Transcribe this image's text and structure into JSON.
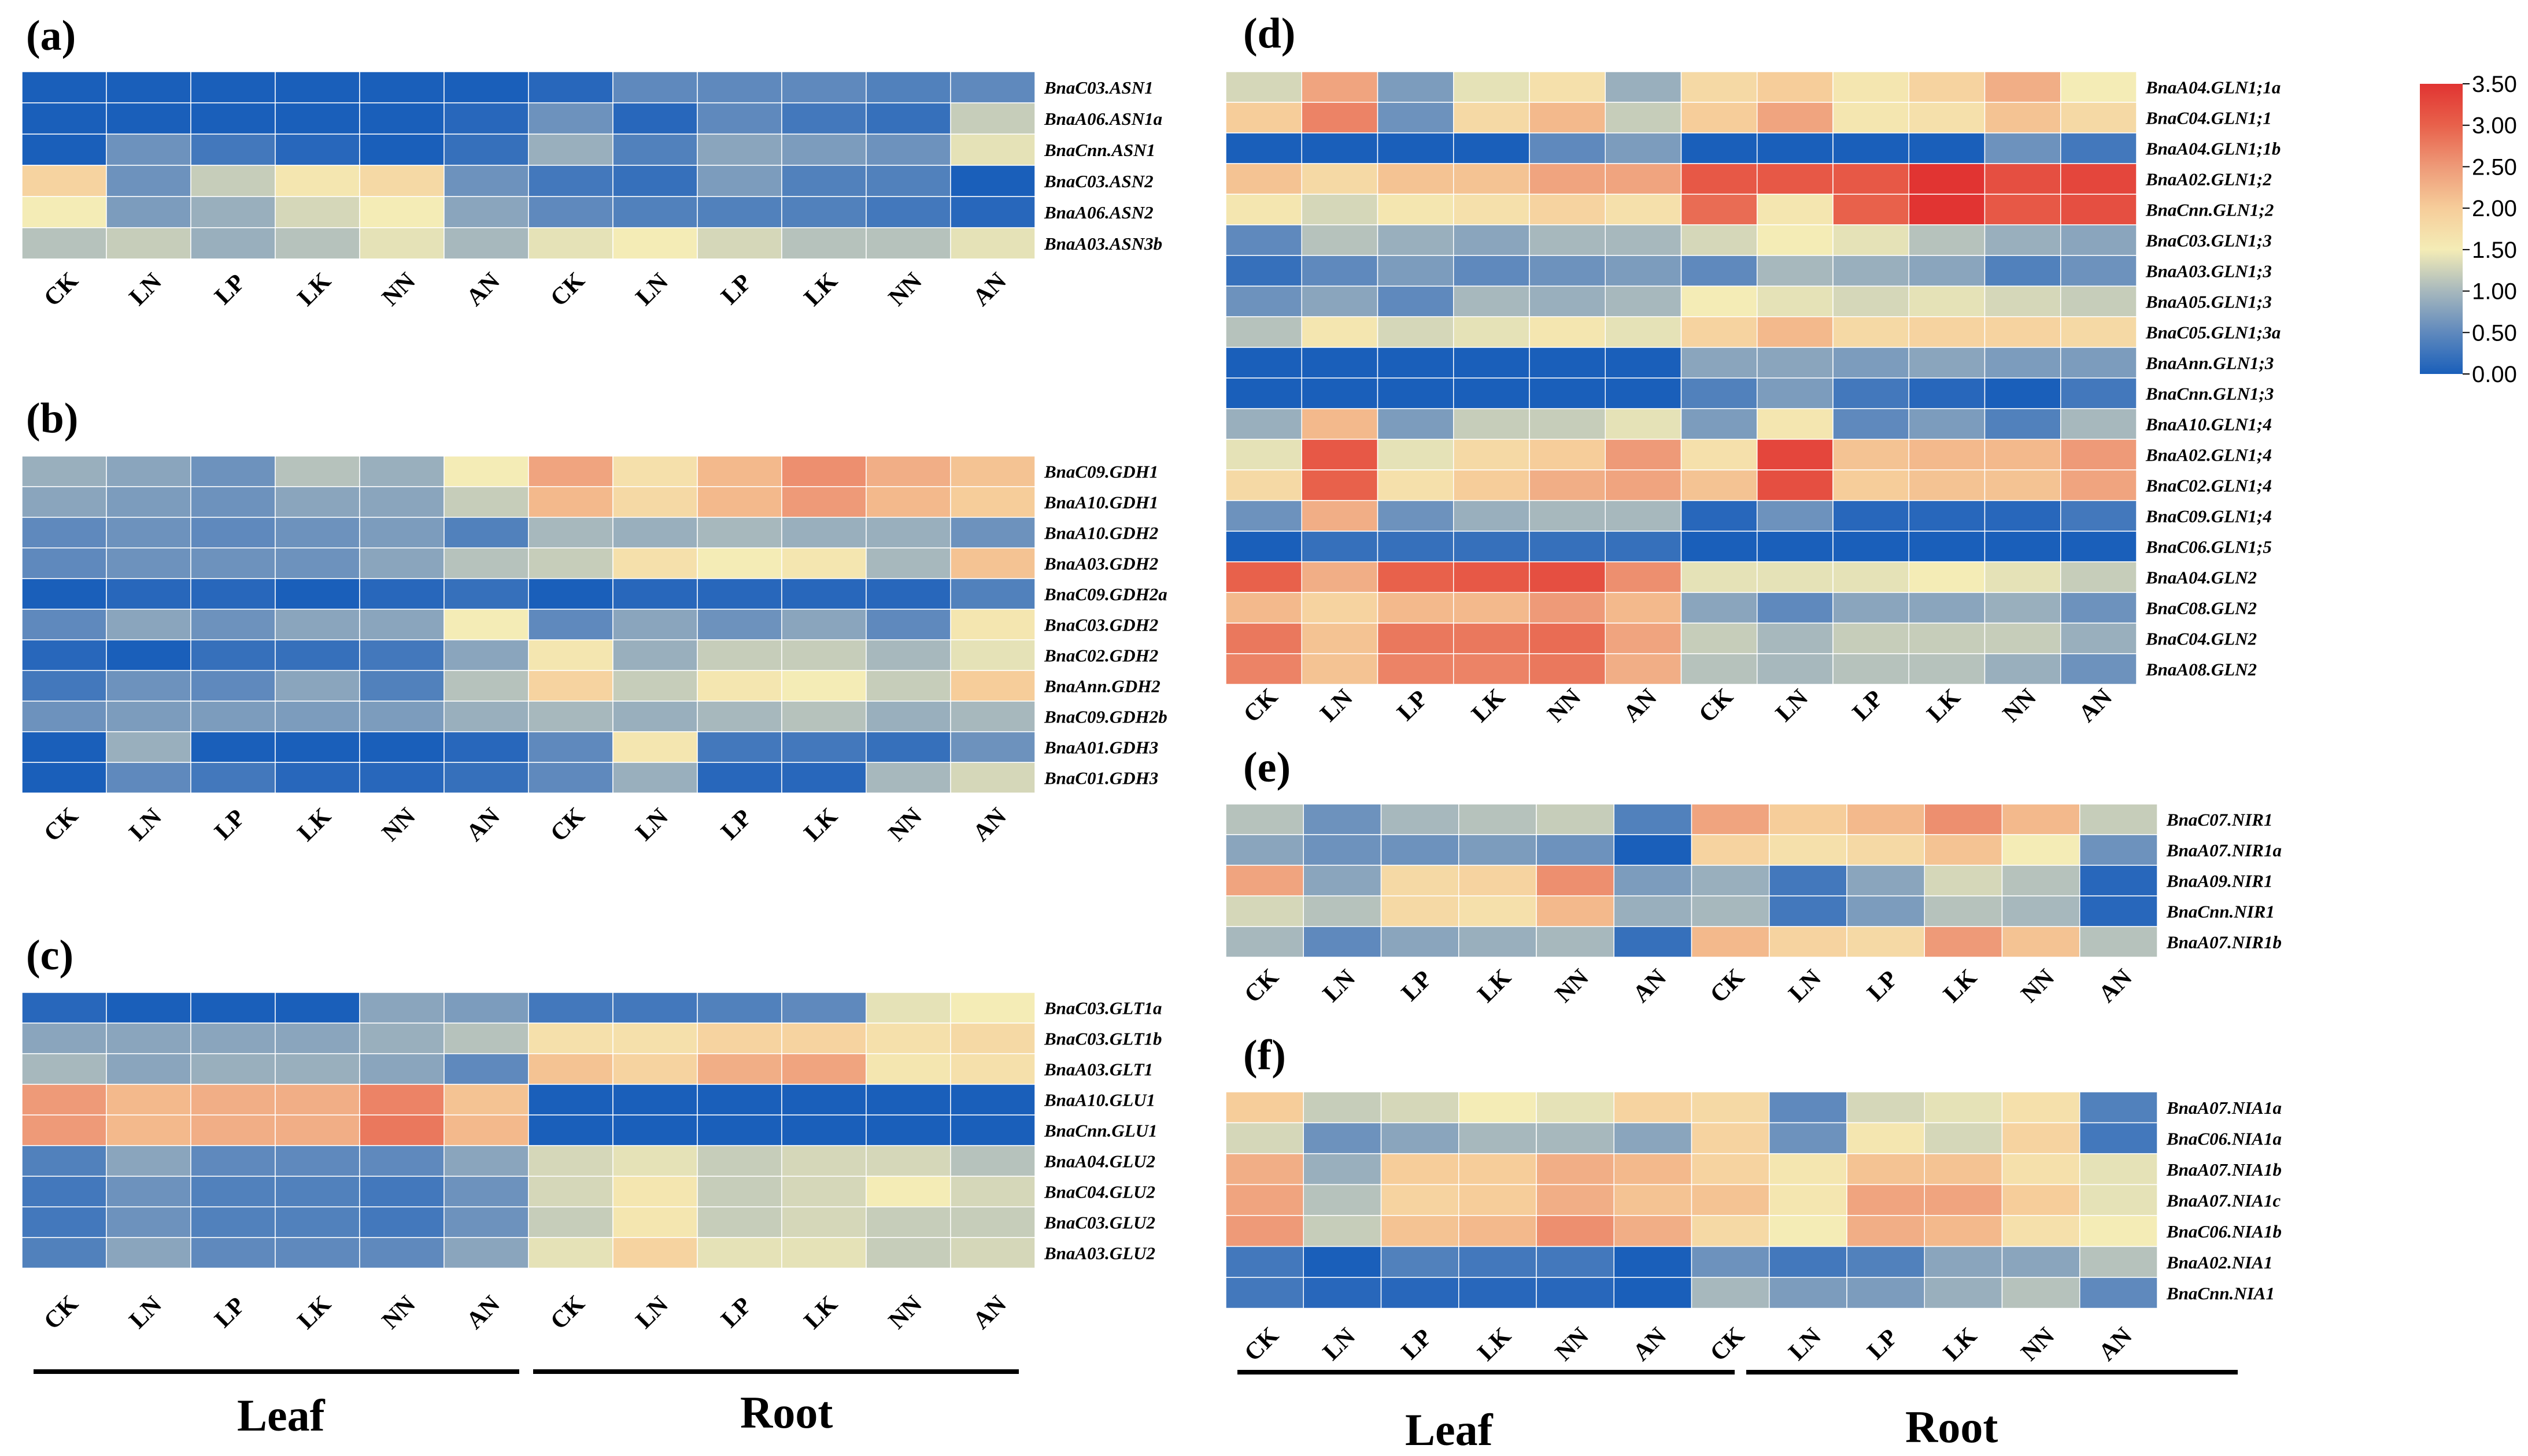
{
  "figure": {
    "colormap": {
      "stops": [
        {
          "v": 0.0,
          "c": "#1a5fba"
        },
        {
          "v": 0.5,
          "c": "#5f89bd"
        },
        {
          "v": 1.0,
          "c": "#a7b8bd"
        },
        {
          "v": 1.5,
          "c": "#f4ecb6"
        },
        {
          "v": 2.0,
          "c": "#f6cd9a"
        },
        {
          "v": 2.5,
          "c": "#ee9a78"
        },
        {
          "v": 3.0,
          "c": "#e8614b"
        },
        {
          "v": 3.5,
          "c": "#e13432"
        }
      ],
      "ticks": [
        "3.50",
        "3.00",
        "2.50",
        "2.00",
        "1.50",
        "1.00",
        "0.50",
        "0.00"
      ]
    },
    "treatments": [
      "CK",
      "LN",
      "LP",
      "LK",
      "NN",
      "AN",
      "CK",
      "LN",
      "LP",
      "LK",
      "NN",
      "AN"
    ],
    "tissue_labels": {
      "leaf": "Leaf",
      "root": "Root"
    }
  },
  "chart_data": [
    {
      "type": "heatmap",
      "panel": "(a)",
      "columns": [
        "CK",
        "LN",
        "LP",
        "LK",
        "NN",
        "AN",
        "CK",
        "LN",
        "LP",
        "LK",
        "NN",
        "AN"
      ],
      "rows": [
        "BnaC03.ASN1",
        "BnaA06.ASN1a",
        "BnaCnn.ASN1",
        "BnaC03.ASN2",
        "BnaA06.ASN2",
        "BnaA03.ASN3b"
      ],
      "values": [
        [
          0.0,
          0.0,
          0.0,
          0.0,
          0.0,
          0.0,
          0.1,
          0.5,
          0.5,
          0.5,
          0.4,
          0.5
        ],
        [
          0.0,
          0.0,
          0.0,
          0.0,
          0.0,
          0.1,
          0.6,
          0.1,
          0.5,
          0.3,
          0.2,
          1.2
        ],
        [
          0.0,
          0.6,
          0.3,
          0.1,
          0.0,
          0.2,
          0.9,
          0.4,
          0.8,
          0.7,
          0.6,
          1.4
        ],
        [
          1.9,
          0.6,
          1.2,
          1.6,
          1.8,
          0.6,
          0.3,
          0.2,
          0.7,
          0.4,
          0.4,
          0.0
        ],
        [
          1.5,
          0.7,
          0.9,
          1.3,
          1.5,
          0.8,
          0.5,
          0.4,
          0.4,
          0.4,
          0.3,
          0.1
        ],
        [
          1.1,
          1.2,
          0.9,
          1.1,
          1.4,
          1.0,
          1.4,
          1.5,
          1.3,
          1.1,
          1.1,
          1.4
        ]
      ]
    },
    {
      "type": "heatmap",
      "panel": "(b)",
      "columns": [
        "CK",
        "LN",
        "LP",
        "LK",
        "NN",
        "AN",
        "CK",
        "LN",
        "LP",
        "LK",
        "NN",
        "AN"
      ],
      "rows": [
        "BnaC09.GDH1",
        "BnaA10.GDH1",
        "BnaA10.GDH2",
        "BnaA03.GDH2",
        "BnaC09.GDH2a",
        "BnaC03.GDH2",
        "BnaC02.GDH2",
        "BnaAnn.GDH2",
        "BnaC09.GDH2b",
        "BnaA01.GDH3",
        "BnaC01.GDH3"
      ],
      "values": [
        [
          0.9,
          0.8,
          0.6,
          1.1,
          0.9,
          1.5,
          2.4,
          1.7,
          2.2,
          2.6,
          2.3,
          2.1
        ],
        [
          0.8,
          0.7,
          0.6,
          0.8,
          0.8,
          1.2,
          2.2,
          1.8,
          2.2,
          2.5,
          2.2,
          2.0
        ],
        [
          0.5,
          0.6,
          0.5,
          0.6,
          0.7,
          0.4,
          1.0,
          0.9,
          1.0,
          0.9,
          0.9,
          0.6
        ],
        [
          0.5,
          0.6,
          0.6,
          0.6,
          0.8,
          1.1,
          1.2,
          1.7,
          1.5,
          1.6,
          1.0,
          2.1
        ],
        [
          0.0,
          0.1,
          0.1,
          0.0,
          0.1,
          0.2,
          0.0,
          0.1,
          0.1,
          0.1,
          0.1,
          0.4
        ],
        [
          0.5,
          0.8,
          0.6,
          0.8,
          0.8,
          1.5,
          0.5,
          0.8,
          0.6,
          0.8,
          0.5,
          1.6
        ],
        [
          0.1,
          0.0,
          0.2,
          0.2,
          0.3,
          0.8,
          1.6,
          0.9,
          1.2,
          1.2,
          1.0,
          1.4
        ],
        [
          0.3,
          0.6,
          0.5,
          0.8,
          0.4,
          1.1,
          1.9,
          1.2,
          1.6,
          1.5,
          1.2,
          2.0
        ],
        [
          0.6,
          0.7,
          0.7,
          0.7,
          0.7,
          0.9,
          1.0,
          0.9,
          1.0,
          1.1,
          0.9,
          1.0
        ],
        [
          0.0,
          0.9,
          0.0,
          0.0,
          0.0,
          0.1,
          0.5,
          1.6,
          0.3,
          0.3,
          0.2,
          0.6
        ],
        [
          0.0,
          0.5,
          0.3,
          0.1,
          0.1,
          0.2,
          0.5,
          0.9,
          0.1,
          0.1,
          1.0,
          1.3
        ]
      ]
    },
    {
      "type": "heatmap",
      "panel": "(c)",
      "columns": [
        "CK",
        "LN",
        "LP",
        "LK",
        "NN",
        "AN",
        "CK",
        "LN",
        "LP",
        "LK",
        "NN",
        "AN"
      ],
      "rows": [
        "BnaC03.GLT1a",
        "BnaC03.GLT1b",
        "BnaA03.GLT1",
        "BnaA10.GLU1",
        "BnaCnn.GLU1",
        "BnaA04.GLU2",
        "BnaC04.GLU2",
        "BnaC03.GLU2",
        "BnaA03.GLU2"
      ],
      "values": [
        [
          0.1,
          0.0,
          0.0,
          0.0,
          0.8,
          0.7,
          0.3,
          0.3,
          0.4,
          0.5,
          1.4,
          1.5
        ],
        [
          0.8,
          0.8,
          0.8,
          0.8,
          0.9,
          1.1,
          1.7,
          1.7,
          1.9,
          1.9,
          1.7,
          1.8
        ],
        [
          1.0,
          0.8,
          0.9,
          0.9,
          0.8,
          0.5,
          2.1,
          1.9,
          2.3,
          2.4,
          1.6,
          1.7
        ],
        [
          2.5,
          2.2,
          2.3,
          2.3,
          2.7,
          2.1,
          0.0,
          0.0,
          0.0,
          0.0,
          0.0,
          0.0
        ],
        [
          2.5,
          2.2,
          2.3,
          2.3,
          2.8,
          2.2,
          0.0,
          0.0,
          0.0,
          0.0,
          0.0,
          0.0
        ],
        [
          0.4,
          0.8,
          0.5,
          0.5,
          0.5,
          0.8,
          1.3,
          1.4,
          1.2,
          1.3,
          1.3,
          1.1
        ],
        [
          0.3,
          0.6,
          0.4,
          0.4,
          0.3,
          0.6,
          1.3,
          1.6,
          1.2,
          1.3,
          1.5,
          1.3
        ],
        [
          0.3,
          0.6,
          0.4,
          0.4,
          0.3,
          0.6,
          1.2,
          1.6,
          1.2,
          1.3,
          1.2,
          1.2
        ],
        [
          0.4,
          0.8,
          0.5,
          0.5,
          0.5,
          0.8,
          1.4,
          1.9,
          1.4,
          1.4,
          1.2,
          1.3
        ]
      ]
    },
    {
      "type": "heatmap",
      "panel": "(d)",
      "columns": [
        "CK",
        "LN",
        "LP",
        "LK",
        "NN",
        "AN",
        "CK",
        "LN",
        "LP",
        "LK",
        "NN",
        "AN"
      ],
      "rows": [
        "BnaA04.GLN1;1a",
        "BnaC04.GLN1;1",
        "BnaA04.GLN1;1b",
        "BnaA02.GLN1;2",
        "BnaCnn.GLN1;2",
        "BnaC03.GLN1;3",
        "BnaA03.GLN1;3",
        "BnaA05.GLN1;3",
        "BnaC05.GLN1;3a",
        "BnaAnn.GLN1;3",
        "BnaCnn.GLN1;3",
        "BnaA10.GLN1;4",
        "BnaA02.GLN1;4",
        "BnaC02.GLN1;4",
        "BnaC09.GLN1;4",
        "BnaC06.GLN1;5",
        "BnaA04.GLN2",
        "BnaC08.GLN2",
        "BnaC04.GLN2",
        "BnaA08.GLN2"
      ],
      "values": [
        [
          1.3,
          2.4,
          0.7,
          1.4,
          1.7,
          0.9,
          1.8,
          2.0,
          1.6,
          1.9,
          2.3,
          1.5
        ],
        [
          2.0,
          2.7,
          0.6,
          1.8,
          2.2,
          1.2,
          2.0,
          2.4,
          1.6,
          1.7,
          2.1,
          1.8
        ],
        [
          0.0,
          0.0,
          0.0,
          0.0,
          0.5,
          0.7,
          0.0,
          0.0,
          0.0,
          0.0,
          0.6,
          0.3
        ],
        [
          2.1,
          1.8,
          2.1,
          2.1,
          2.4,
          2.4,
          3.1,
          3.1,
          3.1,
          3.5,
          3.2,
          3.3
        ],
        [
          1.6,
          1.3,
          1.6,
          1.7,
          1.9,
          1.7,
          2.9,
          1.6,
          3.0,
          3.6,
          3.1,
          3.2
        ],
        [
          0.5,
          1.1,
          0.9,
          0.8,
          1.0,
          1.0,
          1.3,
          1.5,
          1.4,
          1.1,
          0.9,
          0.8
        ],
        [
          0.2,
          0.5,
          0.7,
          0.5,
          0.6,
          0.7,
          0.5,
          1.0,
          0.9,
          0.8,
          0.4,
          0.6
        ],
        [
          0.6,
          0.8,
          0.5,
          1.0,
          0.9,
          1.0,
          1.5,
          1.4,
          1.3,
          1.4,
          1.3,
          1.2
        ],
        [
          1.1,
          1.6,
          1.3,
          1.4,
          1.6,
          1.4,
          1.9,
          2.2,
          1.8,
          1.9,
          1.9,
          1.8
        ],
        [
          0.0,
          0.0,
          0.0,
          0.0,
          0.0,
          0.0,
          0.8,
          0.8,
          0.7,
          0.8,
          0.7,
          0.7
        ],
        [
          0.0,
          0.0,
          0.0,
          0.0,
          0.0,
          0.0,
          0.4,
          0.7,
          0.3,
          0.1,
          0.0,
          0.3
        ],
        [
          0.9,
          2.2,
          0.7,
          1.2,
          1.2,
          1.4,
          0.7,
          1.6,
          0.5,
          0.7,
          0.4,
          1.0
        ],
        [
          1.4,
          3.1,
          1.4,
          1.8,
          2.0,
          2.5,
          1.7,
          3.3,
          2.1,
          2.2,
          2.2,
          2.5
        ],
        [
          1.8,
          3.0,
          1.7,
          2.0,
          2.3,
          2.4,
          2.1,
          3.2,
          2.0,
          2.1,
          2.1,
          2.4
        ],
        [
          0.6,
          2.3,
          0.6,
          0.9,
          1.0,
          1.0,
          0.1,
          0.6,
          0.1,
          0.1,
          0.1,
          0.3
        ],
        [
          0.0,
          0.2,
          0.2,
          0.2,
          0.2,
          0.2,
          0.0,
          0.0,
          0.0,
          0.0,
          0.0,
          0.0
        ],
        [
          3.0,
          2.3,
          3.0,
          3.1,
          3.2,
          2.6,
          1.4,
          1.4,
          1.4,
          1.5,
          1.4,
          1.2
        ],
        [
          2.2,
          1.9,
          2.2,
          2.2,
          2.5,
          2.2,
          0.8,
          0.5,
          0.8,
          0.8,
          0.9,
          0.6
        ],
        [
          2.8,
          2.1,
          2.8,
          2.8,
          2.9,
          2.4,
          1.2,
          1.0,
          1.2,
          1.2,
          1.2,
          0.9
        ],
        [
          2.7,
          2.1,
          2.7,
          2.7,
          2.8,
          2.3,
          1.1,
          1.0,
          1.1,
          1.1,
          0.9,
          0.6
        ]
      ]
    },
    {
      "type": "heatmap",
      "panel": "(e)",
      "columns": [
        "CK",
        "LN",
        "LP",
        "LK",
        "NN",
        "AN",
        "CK",
        "LN",
        "LP",
        "LK",
        "NN",
        "AN"
      ],
      "rows": [
        "BnaC07.NIR1",
        "BnaA07.NIR1a",
        "BnaA09.NIR1",
        "BnaCnn.NIR1",
        "BnaA07.NIR1b"
      ],
      "values": [
        [
          1.1,
          0.6,
          1.0,
          1.1,
          1.2,
          0.4,
          2.4,
          2.0,
          2.2,
          2.6,
          2.2,
          1.2
        ],
        [
          0.8,
          0.6,
          0.6,
          0.7,
          0.6,
          0.0,
          1.9,
          1.7,
          1.8,
          2.1,
          1.5,
          0.6
        ],
        [
          2.4,
          0.8,
          1.8,
          1.9,
          2.6,
          0.7,
          0.9,
          0.3,
          0.8,
          1.3,
          1.1,
          0.1
        ],
        [
          1.3,
          1.1,
          1.8,
          1.7,
          2.2,
          0.9,
          1.0,
          0.3,
          0.7,
          1.1,
          1.0,
          0.1
        ],
        [
          1.0,
          0.5,
          0.8,
          0.9,
          1.0,
          0.2,
          2.2,
          1.9,
          1.8,
          2.5,
          2.1,
          1.1
        ]
      ]
    },
    {
      "type": "heatmap",
      "panel": "(f)",
      "columns": [
        "CK",
        "LN",
        "LP",
        "LK",
        "NN",
        "AN",
        "CK",
        "LN",
        "LP",
        "LK",
        "NN",
        "AN"
      ],
      "rows": [
        "BnaA07.NIA1a",
        "BnaC06.NIA1a",
        "BnaA07.NIA1b",
        "BnaA07.NIA1c",
        "BnaC06.NIA1b",
        "BnaA02.NIA1",
        "BnaCnn.NIA1"
      ],
      "values": [
        [
          2.0,
          1.2,
          1.3,
          1.5,
          1.4,
          1.9,
          1.8,
          0.5,
          1.3,
          1.4,
          1.7,
          0.4
        ],
        [
          1.3,
          0.6,
          0.8,
          1.0,
          1.0,
          0.8,
          1.9,
          0.6,
          1.6,
          1.3,
          1.9,
          0.3
        ],
        [
          2.3,
          0.9,
          2.0,
          2.0,
          2.3,
          2.2,
          1.9,
          1.6,
          2.1,
          2.1,
          1.7,
          1.4
        ],
        [
          2.4,
          1.1,
          1.9,
          2.0,
          2.3,
          2.1,
          2.1,
          1.6,
          2.4,
          2.4,
          2.0,
          1.4
        ],
        [
          2.5,
          1.2,
          2.1,
          2.2,
          2.6,
          2.3,
          1.8,
          1.5,
          2.3,
          2.2,
          1.7,
          1.5
        ],
        [
          0.3,
          0.0,
          0.4,
          0.3,
          0.3,
          0.0,
          0.6,
          0.3,
          0.4,
          0.8,
          0.8,
          1.1
        ],
        [
          0.3,
          0.1,
          0.1,
          0.1,
          0.1,
          0.0,
          1.0,
          0.7,
          0.7,
          0.9,
          1.1,
          0.5
        ]
      ]
    }
  ]
}
